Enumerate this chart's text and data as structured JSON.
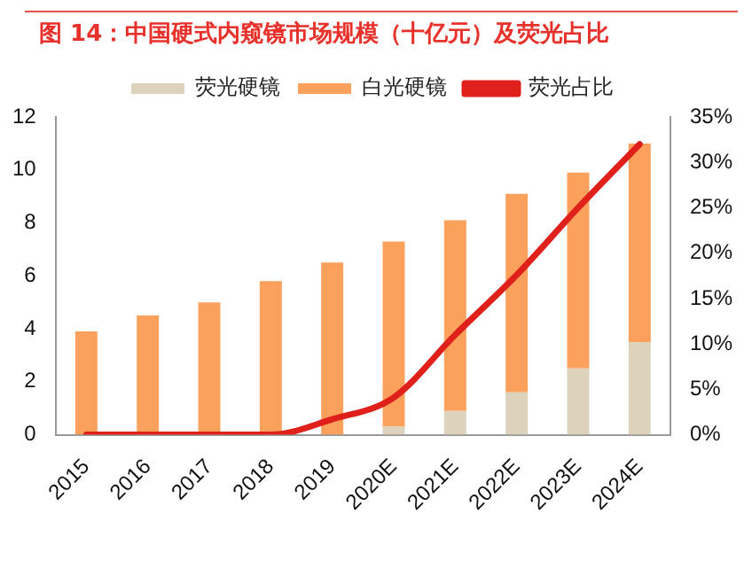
{
  "chart_data": {
    "type": "bar",
    "title": "图 14：中国硬式内窥镜市场规模（十亿元）及荧光占比",
    "categories": [
      "2015",
      "2016",
      "2017",
      "2018",
      "2019",
      "2020E",
      "2021E",
      "2022E",
      "2023E",
      "2024E"
    ],
    "stacked": true,
    "series": [
      {
        "name": "荧光硬镜",
        "color": "#ddd3bc",
        "values": [
          0,
          0,
          0,
          0,
          null,
          0.3,
          0.9,
          1.6,
          2.5,
          3.5
        ]
      },
      {
        "name": "白光硬镜",
        "color": "#fba15c",
        "values": [
          3.9,
          4.5,
          5.0,
          5.8,
          6.5,
          7.0,
          7.2,
          7.5,
          7.4,
          7.5
        ]
      },
      {
        "name": "荧光占比",
        "type": "line",
        "axis": "y2",
        "color": "#e0201b",
        "values": [
          0,
          0,
          0,
          0,
          1.7,
          4.1,
          11,
          17.6,
          25,
          32
        ]
      }
    ],
    "ylim": [
      0,
      12
    ],
    "yticks": [
      0,
      2,
      4,
      6,
      8,
      10,
      12
    ],
    "y2lim": [
      0,
      35
    ],
    "y2ticks": [
      {
        "value": 0,
        "label": "0%"
      },
      {
        "value": 5,
        "label": "5%"
      },
      {
        "value": 10,
        "label": "10%"
      },
      {
        "value": 15,
        "label": "15%"
      },
      {
        "value": 20,
        "label": "20%"
      },
      {
        "value": 25,
        "label": "25%"
      },
      {
        "value": 30,
        "label": "30%"
      },
      {
        "value": 35,
        "label": "35%"
      }
    ],
    "legend": "top",
    "grid": false,
    "marker": "none"
  }
}
